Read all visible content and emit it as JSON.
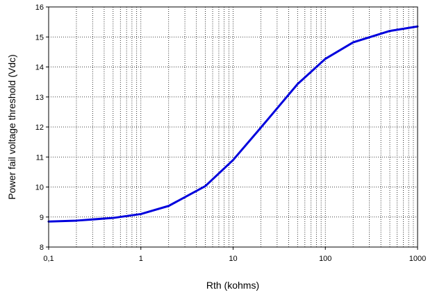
{
  "chart_data": {
    "type": "line",
    "title": "",
    "xlabel": "Rth (kohms)",
    "ylabel": "Power fail voltage threshold (Vdc)",
    "xscale": "log",
    "xlim": [
      0.1,
      1000
    ],
    "ylim": [
      8,
      16
    ],
    "grid": true,
    "grid_style": "dotted",
    "legend": "none",
    "x_tick_labels": [
      {
        "value": 0.1,
        "label": "0,1"
      },
      {
        "value": 1,
        "label": "1"
      },
      {
        "value": 10,
        "label": "10"
      },
      {
        "value": 100,
        "label": "100"
      },
      {
        "value": 1000,
        "label": "1000"
      }
    ],
    "y_tick_labels": [
      {
        "value": 8,
        "label": "8"
      },
      {
        "value": 9,
        "label": "9"
      },
      {
        "value": 10,
        "label": "10"
      },
      {
        "value": 11,
        "label": "11"
      },
      {
        "value": 12,
        "label": "12"
      },
      {
        "value": 13,
        "label": "13"
      },
      {
        "value": 14,
        "label": "14"
      },
      {
        "value": 15,
        "label": "15"
      },
      {
        "value": 16,
        "label": "16"
      }
    ],
    "series": [
      {
        "color": "#0000dd",
        "x": [
          0.1,
          0.2,
          0.5,
          1,
          2,
          5,
          10,
          20,
          50,
          100,
          200,
          500,
          1000
        ],
        "y": [
          8.85,
          8.88,
          8.97,
          9.1,
          9.37,
          10.03,
          10.9,
          11.98,
          13.43,
          14.27,
          14.82,
          15.2,
          15.35
        ]
      }
    ]
  }
}
